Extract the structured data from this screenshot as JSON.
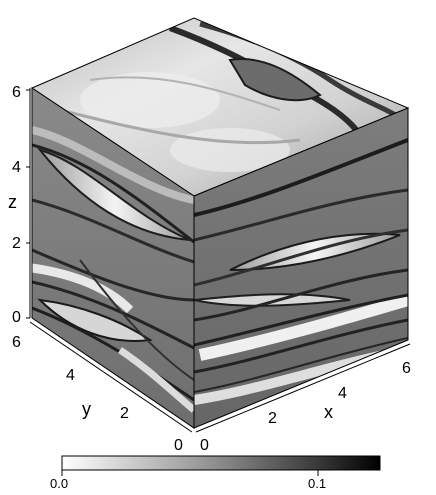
{
  "axes": {
    "x": {
      "name": "x",
      "ticks": [
        "0",
        "2",
        "4",
        "6"
      ]
    },
    "y": {
      "name": "y",
      "ticks": [
        "0",
        "2",
        "4",
        "6"
      ]
    },
    "z": {
      "name": "z",
      "ticks": [
        "0",
        "2",
        "4",
        "6"
      ]
    }
  },
  "colorbar": {
    "min_label": "0.0",
    "max_label": "0.1",
    "min_value": 0.0,
    "max_value": 0.13,
    "colormap": "gray-reversed",
    "low_color": "#ffffff",
    "high_color": "#000000"
  }
}
